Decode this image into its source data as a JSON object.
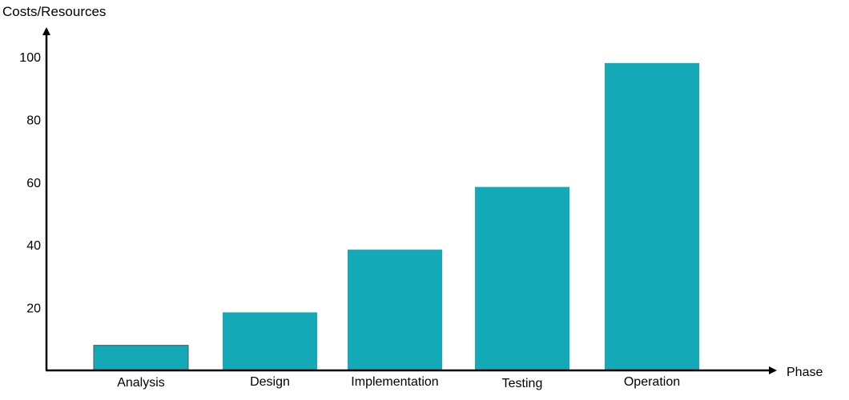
{
  "chart_data": {
    "type": "bar",
    "title": "",
    "xlabel": "Phase",
    "ylabel": "Costs/Resources",
    "categories": [
      "Analysis",
      "Design",
      "Implementation",
      "Testing",
      "Operation"
    ],
    "values": [
      8,
      18.5,
      38.5,
      58.5,
      98
    ],
    "yticks": [
      20,
      40,
      60,
      80,
      100
    ],
    "ylim": [
      0,
      100
    ],
    "grid": false,
    "legend": "none",
    "colors": {
      "bar_fill": "#14a9b6",
      "bar_stroke": "#555555",
      "axis": "#000000"
    }
  }
}
